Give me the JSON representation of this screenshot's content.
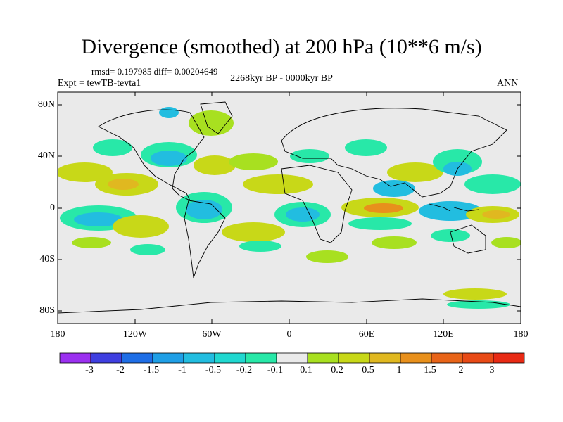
{
  "title": "Divergence (smoothed) at 200 hPa (10**6 m/s)",
  "stats": "rmsd= 0.197985 diff= 0.00204649",
  "experiment": "Expt = tewTB-tevta1",
  "period": "2268kyr BP - 0000kyr BP",
  "season": "ANN",
  "axes": {
    "lat_labels": [
      "80N",
      "40N",
      "0",
      "40S",
      "80S"
    ],
    "lon_labels": [
      "180",
      "120W",
      "60W",
      "0",
      "60E",
      "120E",
      "180"
    ]
  },
  "colorbar": {
    "labels": [
      "-3",
      "-2",
      "-1.5",
      "-1",
      "-0.5",
      "-0.2",
      "-0.1",
      "0.1",
      "0.2",
      "0.5",
      "1",
      "1.5",
      "2",
      "3"
    ],
    "colors": [
      "#9b30f0",
      "#3f3fe0",
      "#1e6ee6",
      "#1f9fe6",
      "#22bde0",
      "#20d8d0",
      "#28e8a8",
      "#eaeaea",
      "#a8e020",
      "#c8d818",
      "#e0b820",
      "#e8901c",
      "#e86418",
      "#e84a16",
      "#e82a14"
    ]
  },
  "palette": {
    "neg_strong": "#1f9fe6",
    "neg_mid": "#22bde0",
    "neg_weak": "#28e8a8",
    "pos_weak": "#a8e020",
    "pos_mid": "#c8d818",
    "pos_strong": "#e0b820",
    "pos_hot": "#e8901c",
    "neutral": "#eaeaea"
  }
}
